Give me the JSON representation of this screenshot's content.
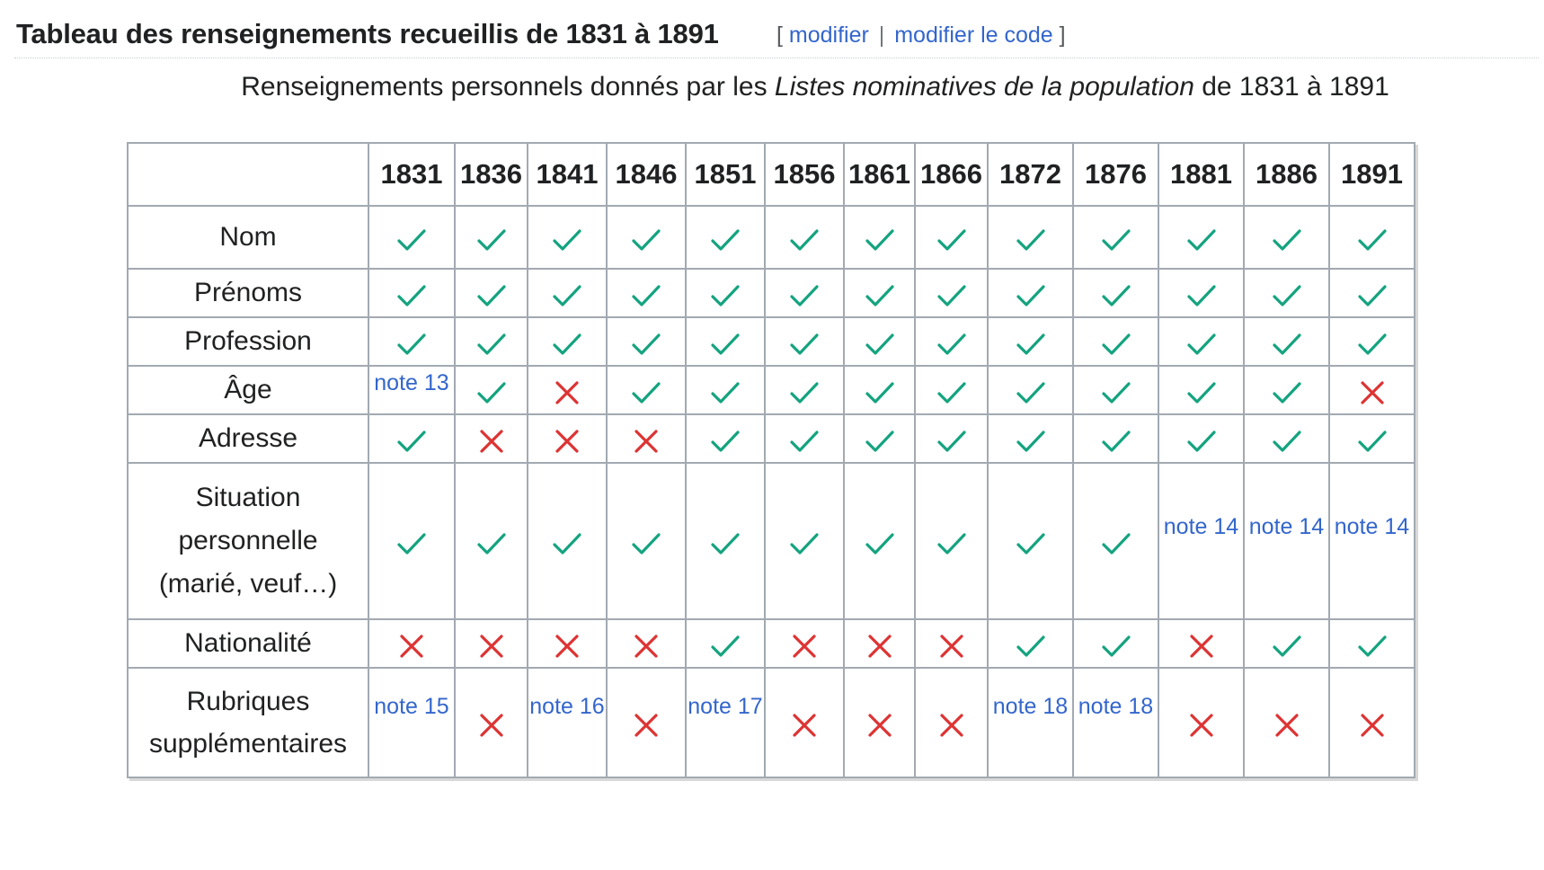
{
  "section": {
    "title": "Tableau des renseignements recueillis de 1831 à 1891",
    "bracket_open": "[",
    "edit_label": "modifier",
    "separator": "|",
    "edit_code_label": "modifier le code",
    "bracket_close": "]"
  },
  "caption": {
    "before": "Renseignements personnels donnés par les ",
    "italic": "Listes nominatives de la population",
    "after": " de 1831 à 1891"
  },
  "colors": {
    "yes": "#14a37f",
    "no": "#dd3333",
    "link": "#3366cc",
    "border": "#a2a9b1"
  },
  "icons": {
    "yes": "check-icon",
    "no": "cross-icon"
  },
  "table": {
    "corner": "",
    "years": [
      "1831",
      "1836",
      "1841",
      "1846",
      "1851",
      "1856",
      "1861",
      "1866",
      "1872",
      "1876",
      "1881",
      "1886",
      "1891"
    ],
    "rows": [
      {
        "label": "Nom",
        "cells": [
          "yes",
          "yes",
          "yes",
          "yes",
          "yes",
          "yes",
          "yes",
          "yes",
          "yes",
          "yes",
          "yes",
          "yes",
          "yes"
        ]
      },
      {
        "label": "Prénoms",
        "cells": [
          "yes",
          "yes",
          "yes",
          "yes",
          "yes",
          "yes",
          "yes",
          "yes",
          "yes",
          "yes",
          "yes",
          "yes",
          "yes"
        ]
      },
      {
        "label": "Profession",
        "cells": [
          "yes",
          "yes",
          "yes",
          "yes",
          "yes",
          "yes",
          "yes",
          "yes",
          "yes",
          "yes",
          "yes",
          "yes",
          "yes"
        ]
      },
      {
        "label": "Âge",
        "cells": [
          "note 13",
          "yes",
          "no",
          "yes",
          "yes",
          "yes",
          "yes",
          "yes",
          "yes",
          "yes",
          "yes",
          "yes",
          "no"
        ]
      },
      {
        "label": "Adresse",
        "cells": [
          "yes",
          "no",
          "no",
          "no",
          "yes",
          "yes",
          "yes",
          "yes",
          "yes",
          "yes",
          "yes",
          "yes",
          "yes"
        ]
      },
      {
        "label": "Situation personnelle (marié, veuf…)",
        "cells": [
          "yes",
          "yes",
          "yes",
          "yes",
          "yes",
          "yes",
          "yes",
          "yes",
          "yes",
          "yes",
          "note 14",
          "note 14",
          "note 14"
        ]
      },
      {
        "label": "Nationalité",
        "cells": [
          "no",
          "no",
          "no",
          "no",
          "yes",
          "no",
          "no",
          "no",
          "yes",
          "yes",
          "no",
          "yes",
          "yes"
        ]
      },
      {
        "label": "Rubriques supplémentaires",
        "cells": [
          "note 15",
          "no",
          "note 16",
          "no",
          "note 17",
          "no",
          "no",
          "no",
          "note 18",
          "note 18",
          "no",
          "no",
          "no"
        ]
      }
    ]
  }
}
